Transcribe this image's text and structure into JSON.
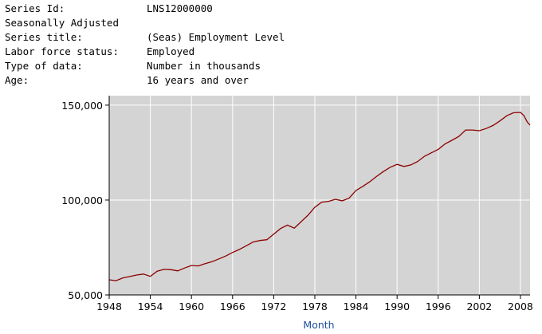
{
  "series_info": [
    {
      "label": "Series Id:",
      "value": "LNS12000000"
    },
    {
      "label": "Seasonally Adjusted",
      "value": ""
    },
    {
      "label": "Series title:",
      "value": "(Seas) Employment Level"
    },
    {
      "label": "Labor force status:",
      "value": "Employed"
    },
    {
      "label": "Type of data:",
      "value": "Number in thousands"
    },
    {
      "label": "Age:",
      "value": "16 years and over"
    }
  ],
  "colors": {
    "plot_background": "#d4d4d4",
    "grid": "#ffffff",
    "line": "#8b0000",
    "xlabel": "#1f4e9a",
    "axis_text": "#000000"
  },
  "chart_data": {
    "type": "line",
    "title": "",
    "xlabel": "Month",
    "ylabel": "",
    "xlim": [
      1948,
      2009.4
    ],
    "ylim": [
      50000,
      155000
    ],
    "x_ticks": [
      1948,
      1954,
      1960,
      1966,
      1972,
      1978,
      1984,
      1990,
      1996,
      2002,
      2008
    ],
    "x_tick_labels": [
      "1948",
      "1954",
      "1960",
      "1966",
      "1972",
      "1978",
      "1984",
      "1990",
      "1996",
      "2002",
      "2008"
    ],
    "y_ticks": [
      50000,
      100000,
      150000
    ],
    "y_tick_labels": [
      "50,000",
      "100,000",
      "150,000"
    ],
    "grid": true,
    "legend": "none",
    "series": [
      {
        "x": [
          1948,
          1949,
          1950,
          1951,
          1952,
          1953,
          1954,
          1955,
          1956,
          1957,
          1958,
          1959,
          1960,
          1961,
          1962,
          1963,
          1964,
          1965,
          1966,
          1967,
          1968,
          1969,
          1970,
          1971,
          1972,
          1973,
          1974,
          1975,
          1976,
          1977,
          1978,
          1979,
          1980,
          1981,
          1982,
          1983,
          1984,
          1985,
          1986,
          1987,
          1988,
          1989,
          1990,
          1991,
          1992,
          1993,
          1994,
          1995,
          1996,
          1997,
          1998,
          1999,
          2000,
          2001,
          2002,
          2003,
          2004,
          2005,
          2006,
          2007,
          2008,
          2008.5,
          2009,
          2009.4
        ],
        "y": [
          58000,
          57500,
          59000,
          59700,
          60500,
          61000,
          59800,
          62500,
          63500,
          63300,
          62700,
          64200,
          65500,
          65300,
          66500,
          67500,
          69000,
          70500,
          72400,
          74000,
          75900,
          77900,
          78700,
          79100,
          82000,
          85000,
          86800,
          85200,
          88600,
          92000,
          96200,
          98900,
          99300,
          100400,
          99600,
          101000,
          105000,
          107200,
          109600,
          112400,
          115000,
          117300,
          118800,
          117700,
          118500,
          120300,
          123100,
          124900,
          126700,
          129600,
          131500,
          133500,
          136900,
          136900,
          136500,
          137700,
          139300,
          141700,
          144400,
          146000,
          146200,
          144500,
          141000,
          139500
        ]
      }
    ]
  }
}
